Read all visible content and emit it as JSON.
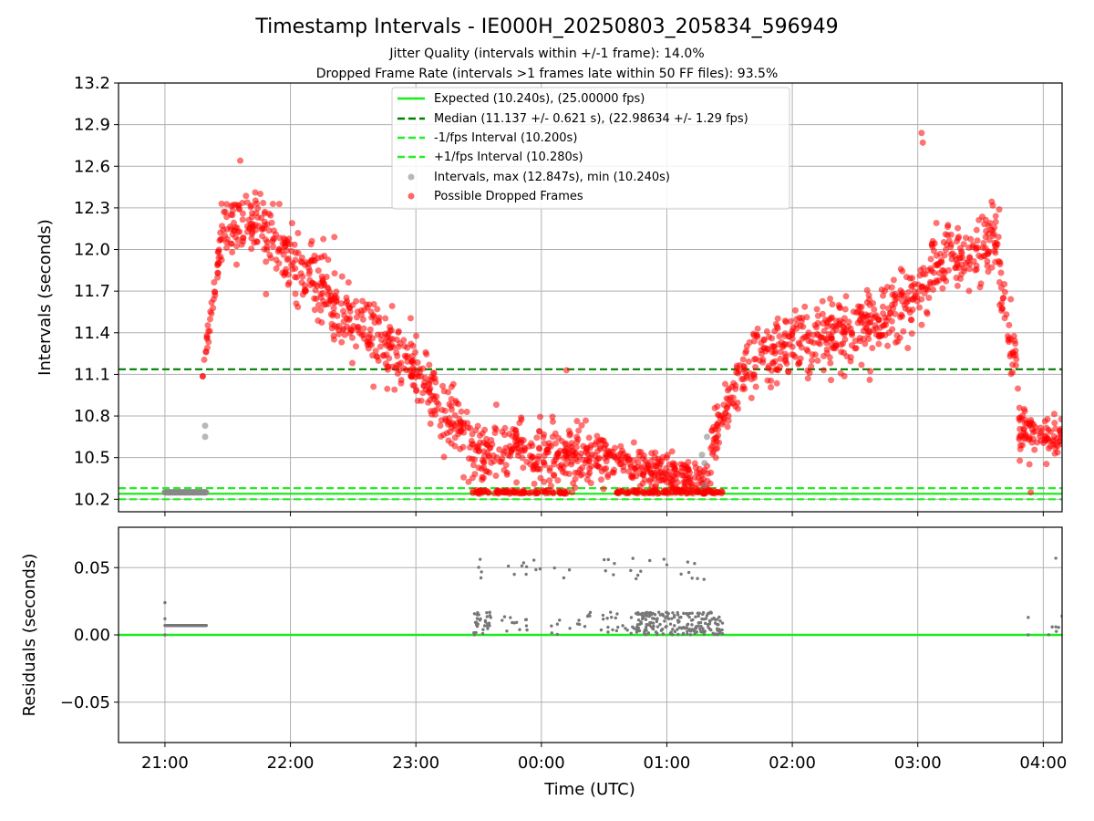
{
  "figure": {
    "title": "Timestamp Intervals - IE000H_20250803_205834_596949",
    "subtitle_1": "Jitter Quality (intervals within +/-1 frame): 14.0%",
    "subtitle_2": "Dropped Frame Rate (intervals >1 frames late within 50 FF files): 93.5%",
    "xlabel": "Time (UTC)"
  },
  "colors": {
    "expected": "#1fe81f",
    "median": "#008000",
    "fps_band": "#22ee22",
    "intervals": "#888888",
    "dropped": "#ff0000",
    "grid": "#b0b0b0",
    "residual_points": "#777777"
  },
  "chart_data": [
    {
      "type": "scatter",
      "id": "intervals",
      "title": "",
      "xlabel": "",
      "ylabel": "Intervals (seconds)",
      "x_unit": "hours since 20:00 UTC",
      "xlim": [
        0.63,
        8.15
      ],
      "ylim": [
        10.11,
        13.2
      ],
      "x_ticks": [
        {
          "value": 1,
          "label": "21:00"
        },
        {
          "value": 2,
          "label": "22:00"
        },
        {
          "value": 3,
          "label": "23:00"
        },
        {
          "value": 4,
          "label": "00:00"
        },
        {
          "value": 5,
          "label": "01:00"
        },
        {
          "value": 6,
          "label": "02:00"
        },
        {
          "value": 7,
          "label": "03:00"
        },
        {
          "value": 8,
          "label": "04:00"
        }
      ],
      "y_ticks": [
        10.2,
        10.5,
        10.8,
        11.1,
        11.4,
        11.7,
        12.0,
        12.3,
        12.6,
        12.9,
        13.2
      ],
      "y_tick_labels": [
        "10.2",
        "10.5",
        "10.8",
        "11.1",
        "11.4",
        "11.7",
        "12.0",
        "12.3",
        "12.6",
        "12.9",
        "13.2"
      ],
      "grid": true,
      "legend_position": "top-center",
      "reference_lines": [
        {
          "name": "Expected (10.240s), (25.00000 fps)",
          "y": 10.24,
          "style": "solid",
          "color_key": "expected"
        },
        {
          "name": "Median (11.137 +/- 0.621 s), (22.98634 +/- 1.29 fps)",
          "y": 11.137,
          "style": "dashed",
          "color_key": "median"
        },
        {
          "name": "-1/fps Interval (10.200s)",
          "y": 10.2,
          "style": "dashed",
          "color_key": "fps_band"
        },
        {
          "name": "+1/fps Interval (10.280s)",
          "y": 10.28,
          "style": "dashed",
          "color_key": "fps_band"
        }
      ],
      "series": [
        {
          "name": "Intervals, max (12.847s), min (10.240s)",
          "color_key": "intervals",
          "points": [
            [
              1.0,
              10.25
            ],
            [
              1.04,
              10.25
            ],
            [
              1.08,
              10.25
            ],
            [
              1.12,
              10.25
            ],
            [
              1.16,
              10.25
            ],
            [
              1.2,
              10.25
            ],
            [
              1.24,
              10.25
            ],
            [
              1.28,
              10.25
            ],
            [
              1.32,
              10.25
            ],
            [
              1.32,
              10.73
            ],
            [
              1.32,
              10.65
            ],
            [
              5.28,
              10.52
            ],
            [
              5.3,
              10.46
            ],
            [
              5.32,
              10.65
            ],
            [
              5.3,
              10.3
            ]
          ]
        },
        {
          "name": "Possible Dropped Frames",
          "color_key": "dropped",
          "segments": [
            {
              "x": [
                1.3,
                1.45
              ],
              "y": [
                11.1,
                12.1
              ],
              "spread": 0.1
            },
            {
              "x": [
                1.45,
                1.8
              ],
              "y": [
                12.1,
                12.25
              ],
              "spread": 0.18
            },
            {
              "x": [
                1.8,
                2.3
              ],
              "y": [
                12.1,
                11.7
              ],
              "spread": 0.2
            },
            {
              "x": [
                2.3,
                2.9
              ],
              "y": [
                11.6,
                11.2
              ],
              "spread": 0.2
            },
            {
              "x": [
                2.9,
                3.45
              ],
              "y": [
                11.2,
                10.6
              ],
              "spread": 0.2
            },
            {
              "x": [
                3.45,
                4.5
              ],
              "y": [
                10.55,
                10.5
              ],
              "spread": 0.18
            },
            {
              "x": [
                4.5,
                5.35
              ],
              "y": [
                10.5,
                10.3
              ],
              "spread": 0.12
            },
            {
              "x": [
                5.35,
                5.65
              ],
              "y": [
                10.6,
                11.2
              ],
              "spread": 0.15
            },
            {
              "x": [
                5.65,
                6.6
              ],
              "y": [
                11.2,
                11.45
              ],
              "spread": 0.2
            },
            {
              "x": [
                6.6,
                7.1
              ],
              "y": [
                11.45,
                11.75
              ],
              "spread": 0.2
            },
            {
              "x": [
                7.1,
                7.65
              ],
              "y": [
                11.9,
                12.05
              ],
              "spread": 0.2
            },
            {
              "x": [
                7.65,
                7.8
              ],
              "y": [
                11.8,
                11.0
              ],
              "spread": 0.2
            },
            {
              "x": [
                7.8,
                8.15
              ],
              "y": [
                10.7,
                10.6
              ],
              "spread": 0.15
            }
          ],
          "bottom_clusters": [
            [
              3.45,
              4.2
            ],
            [
              4.6,
              5.45
            ]
          ],
          "outliers": [
            [
              1.6,
              12.64
            ],
            [
              7.03,
              12.84
            ],
            [
              7.04,
              12.77
            ],
            [
              2.35,
              12.09
            ],
            [
              4.2,
              11.13
            ],
            [
              7.9,
              10.25
            ]
          ]
        }
      ]
    },
    {
      "type": "scatter",
      "id": "residuals",
      "title": "",
      "xlabel": "Time (UTC)",
      "ylabel": "Residuals (seconds)",
      "xlim": [
        0.63,
        8.15
      ],
      "ylim": [
        -0.08,
        0.08
      ],
      "y_ticks": [
        0.05,
        0.0,
        -0.05
      ],
      "y_tick_labels": [
        "0.05",
        "0.00",
        "−0.05"
      ],
      "grid": true,
      "zero_line": 0.0,
      "series": [
        {
          "name": "",
          "color_key": "residual_points",
          "points_low": [
            [
              3.45,
              3.6,
              30
            ],
            [
              3.65,
              3.9,
              12
            ],
            [
              4.0,
              4.4,
              14
            ],
            [
              4.45,
              4.75,
              20
            ],
            [
              4.75,
              5.45,
              200
            ],
            [
              7.9,
              8.15,
              4
            ]
          ],
          "points_high": [
            [
              3.5,
              3.55,
              4
            ],
            [
              3.6,
              4.3,
              12
            ],
            [
              4.4,
              4.8,
              10
            ],
            [
              4.85,
              5.35,
              10
            ]
          ],
          "flat_run": {
            "x": [
              1.0,
              1.33
            ],
            "y": 0.007
          },
          "extras": [
            [
              1.0,
              0.024
            ],
            [
              1.0,
              0.0
            ],
            [
              1.0,
              0.012
            ],
            [
              7.88,
              0.013
            ],
            [
              7.88,
              0.0
            ],
            [
              8.1,
              0.057
            ],
            [
              8.1,
              0.006
            ],
            [
              8.15,
              0.014
            ]
          ]
        }
      ]
    }
  ]
}
